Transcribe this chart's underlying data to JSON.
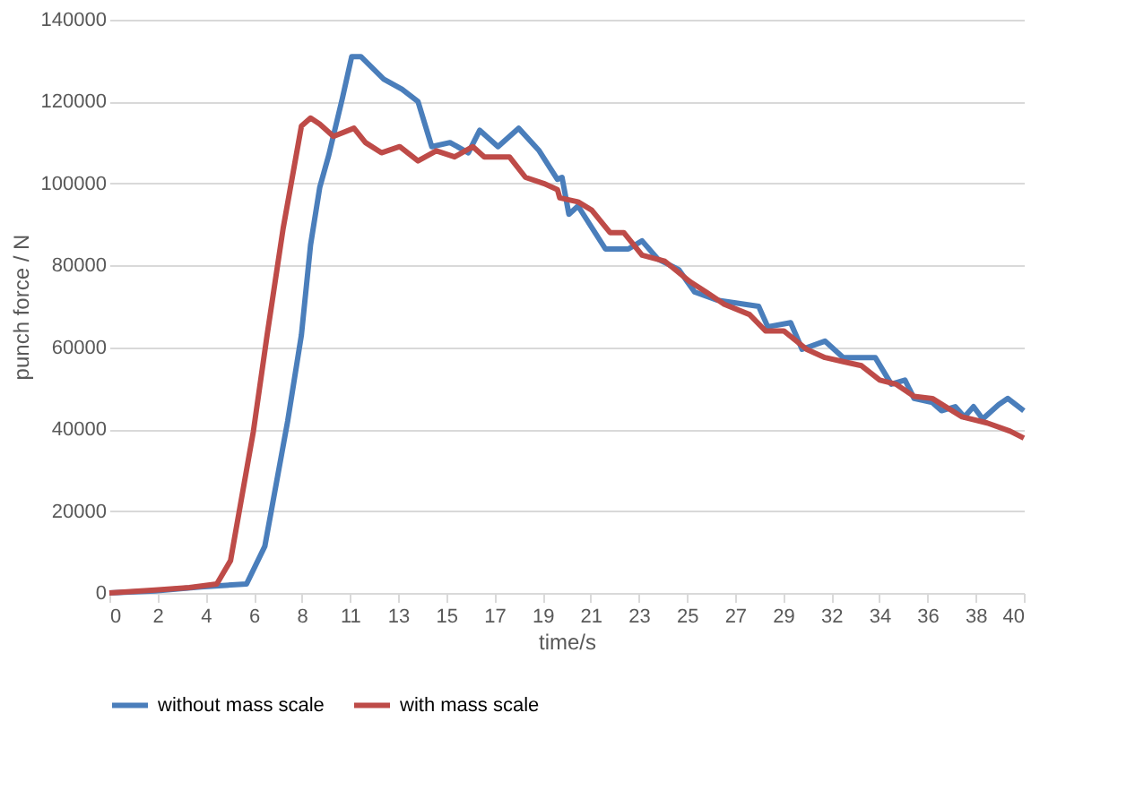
{
  "chart_data": {
    "type": "line",
    "xlabel": "time/s",
    "ylabel": "punch force / N",
    "xlim": [
      0,
      40
    ],
    "ylim": [
      0,
      140000
    ],
    "xticks": [
      {
        "value": 0,
        "label": "0"
      },
      {
        "value": 2.105,
        "label": "2"
      },
      {
        "value": 4.211,
        "label": "4"
      },
      {
        "value": 6.316,
        "label": "6"
      },
      {
        "value": 8.421,
        "label": "8"
      },
      {
        "value": 10.526,
        "label": "11"
      },
      {
        "value": 12.632,
        "label": "13"
      },
      {
        "value": 14.737,
        "label": "15"
      },
      {
        "value": 16.842,
        "label": "17"
      },
      {
        "value": 18.947,
        "label": "19"
      },
      {
        "value": 21.053,
        "label": "21"
      },
      {
        "value": 23.158,
        "label": "23"
      },
      {
        "value": 25.263,
        "label": "25"
      },
      {
        "value": 27.368,
        "label": "27"
      },
      {
        "value": 29.474,
        "label": "29"
      },
      {
        "value": 31.579,
        "label": "32"
      },
      {
        "value": 33.684,
        "label": "34"
      },
      {
        "value": 35.789,
        "label": "36"
      },
      {
        "value": 37.895,
        "label": "38"
      },
      {
        "value": 40,
        "label": "40"
      }
    ],
    "yticks": [
      0,
      20000,
      40000,
      60000,
      80000,
      100000,
      120000,
      140000
    ],
    "grid": "y",
    "legend": "bottom",
    "line_style": "solid",
    "marker": "none",
    "series": [
      {
        "name": "without mass scale",
        "color": "#4a7ebb",
        "x": [
          0,
          2,
          4,
          6.0,
          6.8,
          7.8,
          8.4,
          8.8,
          9.2,
          9.6,
          10.2,
          10.6,
          11.0,
          12.0,
          12.8,
          13.5,
          14.1,
          14.9,
          15.7,
          16.2,
          17.0,
          17.9,
          18.8,
          19.6,
          19.8,
          20.1,
          20.5,
          21.7,
          22.7,
          23.3,
          24.0,
          24.9,
          25.6,
          26.6,
          27.8,
          28.4,
          28.8,
          29.8,
          30.3,
          31.3,
          32.1,
          33.5,
          34.2,
          34.8,
          35.2,
          36.0,
          36.4,
          37.0,
          37.4,
          37.8,
          38.2,
          38.9,
          39.3,
          40
        ],
        "values": [
          0,
          500,
          1500,
          2200,
          11400,
          42000,
          63000,
          85000,
          99000,
          107000,
          121000,
          131000,
          131000,
          125500,
          123000,
          120000,
          109000,
          110000,
          107500,
          113000,
          109000,
          113500,
          108000,
          101000,
          101500,
          92500,
          94500,
          84000,
          84000,
          86000,
          81500,
          79000,
          73500,
          71500,
          70500,
          70000,
          65000,
          66000,
          59500,
          61500,
          57500,
          57500,
          51000,
          52000,
          47500,
          46500,
          44500,
          45500,
          43000,
          45500,
          42500,
          46000,
          47500,
          44500
        ]
      },
      {
        "name": "with mass scale",
        "color": "#be4b48",
        "x": [
          0,
          2,
          3.5,
          4.7,
          5.3,
          6.3,
          6.9,
          7.6,
          8.4,
          8.8,
          9.2,
          9.8,
          10.7,
          11.2,
          11.9,
          12.7,
          13.5,
          14.3,
          15.1,
          15.9,
          16.4,
          17.5,
          18.2,
          19.0,
          19.6,
          19.7,
          20.5,
          21.1,
          21.9,
          22.5,
          23.3,
          24.3,
          25.4,
          26.1,
          26.9,
          28.0,
          28.7,
          29.5,
          30.5,
          31.3,
          32.1,
          32.9,
          33.7,
          34.4,
          35.2,
          36.0,
          37.3,
          38.4,
          39.4,
          40
        ],
        "values": [
          0,
          700,
          1300,
          2200,
          7900,
          39500,
          63000,
          89000,
          114000,
          116000,
          114500,
          111500,
          113500,
          110000,
          107500,
          109000,
          105500,
          108000,
          106500,
          109000,
          106500,
          106500,
          101500,
          100000,
          98500,
          96500,
          95500,
          93500,
          88000,
          88000,
          82500,
          81000,
          76000,
          73500,
          70500,
          68000,
          64000,
          64000,
          59500,
          57500,
          56500,
          55500,
          52000,
          51000,
          48000,
          47500,
          43000,
          41500,
          39500,
          37800
        ]
      }
    ]
  }
}
